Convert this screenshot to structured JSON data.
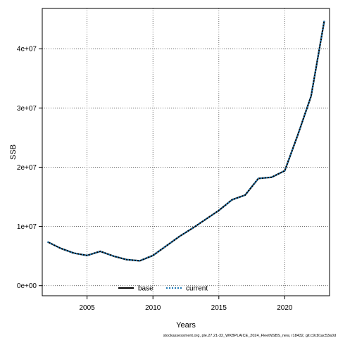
{
  "chart_data": {
    "type": "line",
    "xlabel": "Years",
    "ylabel": "SSB",
    "xlim": [
      2001.6,
      2023.4
    ],
    "ylim": [
      -1700000,
      46800000
    ],
    "x_ticks": [
      2005,
      2010,
      2015,
      2020
    ],
    "x_tick_labels": [
      "2005",
      "2010",
      "2015",
      "2020"
    ],
    "y_ticks": [
      0,
      10000000,
      20000000,
      30000000,
      40000000
    ],
    "y_tick_labels": [
      "0e+00",
      "1e+07",
      "2e+07",
      "3e+07",
      "4e+07"
    ],
    "grid": true,
    "legend_position": "bottom-center",
    "x": [
      2002,
      2003,
      2004,
      2005,
      2006,
      2007,
      2008,
      2009,
      2010,
      2011,
      2012,
      2013,
      2014,
      2015,
      2016,
      2017,
      2018,
      2019,
      2020,
      2021,
      2022,
      2023
    ],
    "series": [
      {
        "name": "base",
        "color": "#000000",
        "style": "solid",
        "values": [
          7400000,
          6300000,
          5500000,
          5100000,
          5800000,
          5000000,
          4400000,
          4200000,
          5100000,
          6700000,
          8300000,
          9700000,
          11200000,
          12700000,
          14500000,
          15300000,
          18100000,
          18300000,
          19400000,
          25500000,
          32000000,
          44700000
        ]
      },
      {
        "name": "current",
        "color": "#1f78b4",
        "style": "dotted",
        "values": [
          7400000,
          6300000,
          5500000,
          5100000,
          5800000,
          5000000,
          4400000,
          4200000,
          5100000,
          6700000,
          8300000,
          9700000,
          11200000,
          12700000,
          14500000,
          15300000,
          18100000,
          18300000,
          19400000,
          25500000,
          32000000,
          44700000
        ]
      }
    ],
    "footer": "stockassessment.org, ple.27.21-32_WKBPLAICE_2024_FleetNSBS_new, r18432, git:c9c81ac53a0d"
  }
}
